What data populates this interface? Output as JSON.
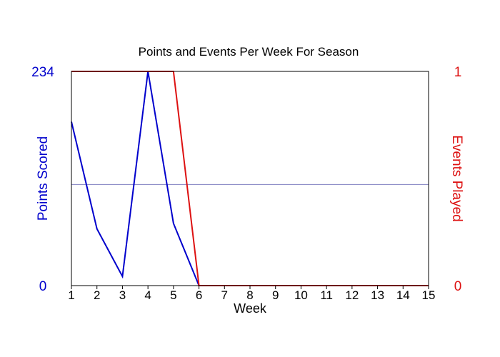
{
  "chart_data": {
    "type": "line",
    "title": "Points and Events Per Week For Season",
    "xlabel": "Week",
    "x": [
      1,
      2,
      3,
      4,
      5,
      6,
      7,
      8,
      9,
      10,
      11,
      12,
      13,
      14,
      15
    ],
    "xlim": [
      1,
      15
    ],
    "y_left": {
      "label": "Points Scored",
      "range": [
        0,
        234
      ],
      "tick_labels": [
        "0",
        "234"
      ],
      "color": "#0000cc"
    },
    "y_right": {
      "label": "Events Played",
      "range": [
        0,
        1
      ],
      "tick_labels": [
        "0",
        "1"
      ],
      "color": "#dd1111"
    },
    "series": [
      {
        "name": "Points Scored",
        "axis": "left",
        "color": "#0000cc",
        "values": [
          179,
          62,
          10,
          234,
          68,
          0,
          0,
          0,
          0,
          0,
          0,
          0,
          0,
          0,
          0
        ]
      },
      {
        "name": "Events Played",
        "axis": "right",
        "color": "#dd1111",
        "values": [
          1,
          1,
          1,
          1,
          1,
          0,
          0,
          0,
          0,
          0,
          0,
          0,
          0,
          0,
          0
        ]
      }
    ],
    "reference_line": {
      "axis": "left",
      "value": 110.5,
      "color": "#8080c0"
    },
    "grid": false
  }
}
